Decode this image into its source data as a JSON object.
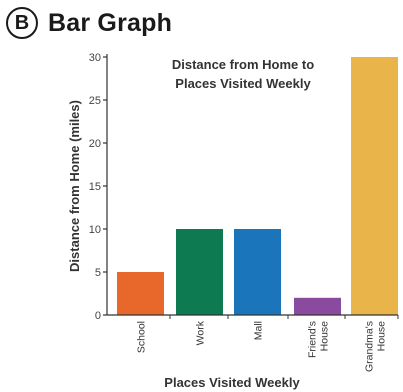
{
  "header": {
    "badge": "B",
    "heading": "Bar Graph"
  },
  "chart_data": {
    "type": "bar",
    "title_lines": [
      "Distance from Home to",
      "Places Visited Weekly"
    ],
    "xlabel": "Places Visited Weekly",
    "ylabel": "Distance from Home (miles)",
    "ylim": [
      0,
      30
    ],
    "yticks": [
      0,
      5,
      10,
      15,
      20,
      25,
      30
    ],
    "grid": false,
    "categories": [
      {
        "lines": [
          "School"
        ]
      },
      {
        "lines": [
          "Work"
        ]
      },
      {
        "lines": [
          "Mall"
        ]
      },
      {
        "lines": [
          "Friend's",
          "House"
        ]
      },
      {
        "lines": [
          "Grandma's",
          "House"
        ]
      }
    ],
    "values": [
      5,
      10,
      10,
      2,
      30
    ],
    "colors": [
      "#e8672a",
      "#0e7a52",
      "#1b75bb",
      "#8a4b9e",
      "#e9b54a"
    ],
    "axis_color": "#333333"
  }
}
